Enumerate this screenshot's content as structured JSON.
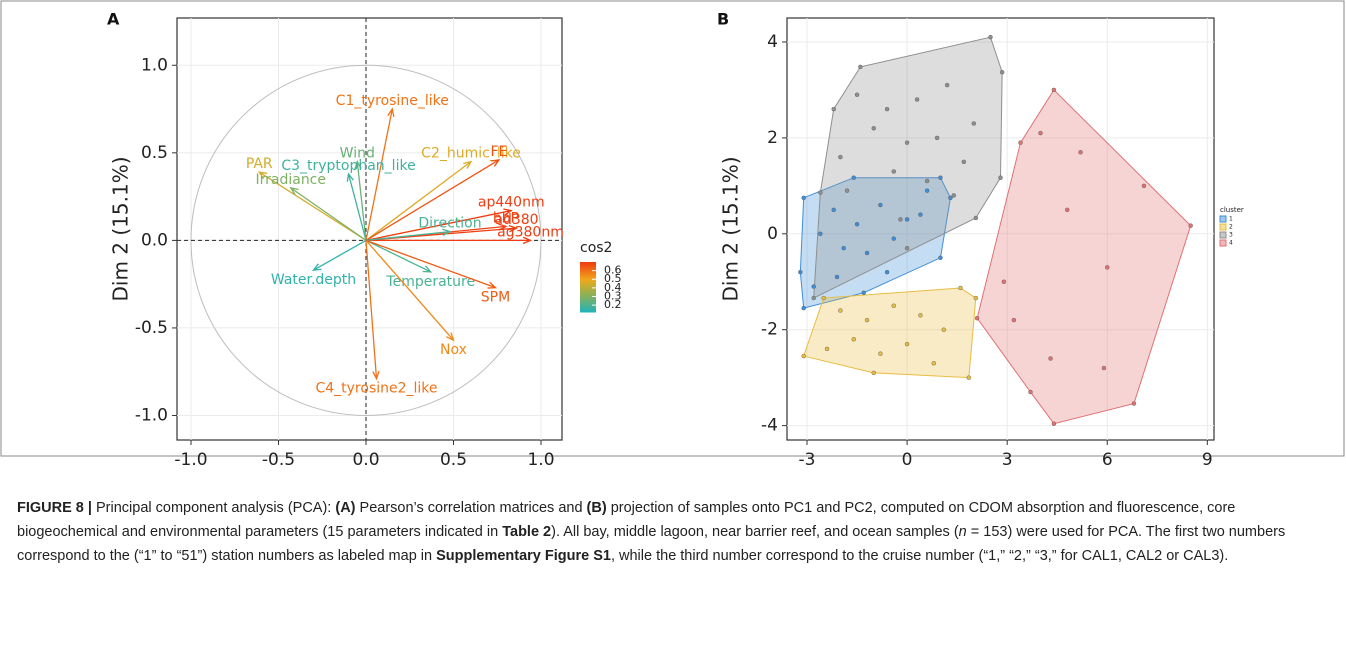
{
  "chart_data": [
    {
      "type": "biplot",
      "panel_label": "A",
      "x_label": "Dim 1 (29 %)",
      "y_label": "Dim 2 (15.1%)",
      "xlim": [
        -1.08,
        1.12
      ],
      "ylim": [
        -1.14,
        1.27
      ],
      "xticks": [
        {
          "value": -1,
          "label": "-1.0"
        },
        {
          "value": -0.5,
          "label": "-0.5"
        },
        {
          "value": 0,
          "label": "0.0"
        },
        {
          "value": 0.5,
          "label": "0.5"
        },
        {
          "value": 1,
          "label": "1.0"
        }
      ],
      "yticks": [
        {
          "value": -1,
          "label": "-1.0"
        },
        {
          "value": -0.5,
          "label": "-0.5"
        },
        {
          "value": 0,
          "label": "0.0"
        },
        {
          "value": 0.5,
          "label": "0.5"
        },
        {
          "value": 1,
          "label": "1.0"
        }
      ],
      "grid": true,
      "color_title": "cos2",
      "color_lim": [
        0.12,
        0.7
      ],
      "color_ticks": [
        0.2,
        0.3,
        0.4,
        0.5,
        0.6
      ],
      "color_stops": [
        {
          "at": 0.12,
          "color": "#1fb3bb"
        },
        {
          "at": 0.35,
          "color": "#9ab04a"
        },
        {
          "at": 0.5,
          "color": "#f0a81c"
        },
        {
          "at": 0.7,
          "color": "#f03c10"
        }
      ],
      "variables": [
        "C1_tyrosine_like",
        "Wind",
        "C3_tryptophan_like",
        "C2_humic_like",
        "FE",
        "PAR",
        "Irradiance",
        "ap440nm",
        "bbP",
        "ad380",
        "ag380nm",
        "Direction",
        "Temperature",
        "SPM",
        "Nox",
        "C4_tyrosine2_like",
        "Water.depth"
      ],
      "x": [
        0.15,
        -0.05,
        -0.1,
        0.6,
        0.76,
        -0.61,
        -0.43,
        0.83,
        0.8,
        0.86,
        0.94,
        0.48,
        0.37,
        0.74,
        0.5,
        0.06,
        -0.3
      ],
      "y": [
        0.75,
        0.45,
        0.38,
        0.45,
        0.46,
        0.39,
        0.3,
        0.17,
        0.08,
        0.07,
        0.0,
        0.05,
        -0.18,
        -0.27,
        -0.57,
        -0.79,
        -0.17
      ],
      "cos2": [
        0.6,
        0.26,
        0.18,
        0.47,
        0.66,
        0.45,
        0.3,
        0.7,
        0.69,
        0.7,
        0.7,
        0.2,
        0.2,
        0.64,
        0.56,
        0.6,
        0.15
      ]
    },
    {
      "type": "cluster_scatter",
      "panel_label": "B",
      "x_label": "Dim 1 (29 %)",
      "y_label": "Dim 2 (15.1%)",
      "xlim": [
        -3.6,
        9.2
      ],
      "ylim": [
        -4.3,
        4.5
      ],
      "xticks": [
        -3,
        0,
        3,
        6,
        9
      ],
      "yticks": [
        -4,
        -2,
        0,
        2,
        4
      ],
      "grid": true,
      "legend_title": "cluster",
      "legend": "right",
      "series": [
        {
          "name": "1",
          "color": "#3f8fd8",
          "x": [
            -3.2,
            -3.1,
            -1.6,
            1.0,
            1.3,
            1.0,
            -1.3,
            -3.1,
            -2.2,
            -1.5,
            -0.8,
            0.0,
            -2.6,
            -1.9,
            -1.2,
            -0.4,
            0.4,
            -2.8,
            -2.1,
            -0.6,
            0.6
          ],
          "y": [
            -0.8,
            0.75,
            1.17,
            1.17,
            0.75,
            -0.5,
            -1.23,
            -1.55,
            0.5,
            0.2,
            0.6,
            0.3,
            0.0,
            -0.3,
            -0.4,
            -0.1,
            0.4,
            -1.1,
            -0.9,
            -0.8,
            0.9
          ]
        },
        {
          "name": "2",
          "color": "#e8bd42",
          "x": [
            -2.5,
            1.6,
            2.06,
            1.85,
            -3.1,
            -2.0,
            -1.2,
            -0.4,
            0.4,
            1.1,
            -1.6,
            -0.8,
            0.0,
            -2.4,
            -1.0,
            0.8
          ],
          "y": [
            -1.34,
            -1.13,
            -1.34,
            -3.0,
            -2.55,
            -1.6,
            -1.8,
            -1.5,
            -1.7,
            -2.0,
            -2.2,
            -2.5,
            -2.3,
            -2.4,
            -2.9,
            -2.7
          ]
        },
        {
          "name": "3",
          "color": "#8f8f8f",
          "x": [
            -1.4,
            2.5,
            2.85,
            2.8,
            2.06,
            0.0,
            -2.8,
            -2.6,
            -2.2,
            -1.5,
            -0.6,
            0.3,
            1.2,
            2.0,
            -1.0,
            0.0,
            0.9,
            1.7,
            -2.0,
            -0.4,
            0.6,
            1.4,
            -1.8,
            -0.2
          ],
          "y": [
            3.48,
            4.1,
            3.37,
            1.17,
            0.33,
            -0.3,
            -1.34,
            0.86,
            2.6,
            2.9,
            2.6,
            2.8,
            3.1,
            2.3,
            2.2,
            1.9,
            2.0,
            1.5,
            1.6,
            1.3,
            1.1,
            0.8,
            0.9,
            0.3
          ]
        },
        {
          "name": "4",
          "color": "#e07272",
          "x": [
            4.4,
            8.5,
            6.8,
            4.4,
            2.1,
            3.4,
            4.0,
            5.2,
            7.1,
            4.8,
            6.0,
            3.2,
            4.3,
            5.9,
            3.7,
            2.9
          ],
          "y": [
            3.0,
            0.17,
            -3.54,
            -3.96,
            -1.76,
            1.9,
            2.1,
            1.7,
            1.0,
            0.5,
            -0.7,
            -1.8,
            -2.6,
            -2.8,
            -3.3,
            -1.0
          ]
        }
      ]
    }
  ],
  "caption": [
    {
      "text": "FIGURE 8 | ",
      "bold": true
    },
    {
      "text": "Principal component analysis (PCA): "
    },
    {
      "text": "(A)",
      "bold": true
    },
    {
      "text": " Pearson’s correlation matrices and "
    },
    {
      "text": "(B)",
      "bold": true
    },
    {
      "text": " projection of samples onto PC1 and PC2, computed on CDOM absorption and fluorescence, core biogeochemical and environmental parameters (15 parameters indicated in "
    },
    {
      "text": "Table 2",
      "bold": true
    },
    {
      "text": "). All bay, middle lagoon, near barrier reef, and ocean samples ("
    },
    {
      "text": "n",
      "italic": true
    },
    {
      "text": " = 153) were used for PCA. The first two numbers correspond to the (“1” to “51”) station numbers as labeled map in "
    },
    {
      "text": "Supplementary Figure S1",
      "bold": true
    },
    {
      "text": ", while the third number correspond to the cruise number (“1,” “2,” “3,” for CAL1, CAL2 or CAL3)."
    }
  ]
}
